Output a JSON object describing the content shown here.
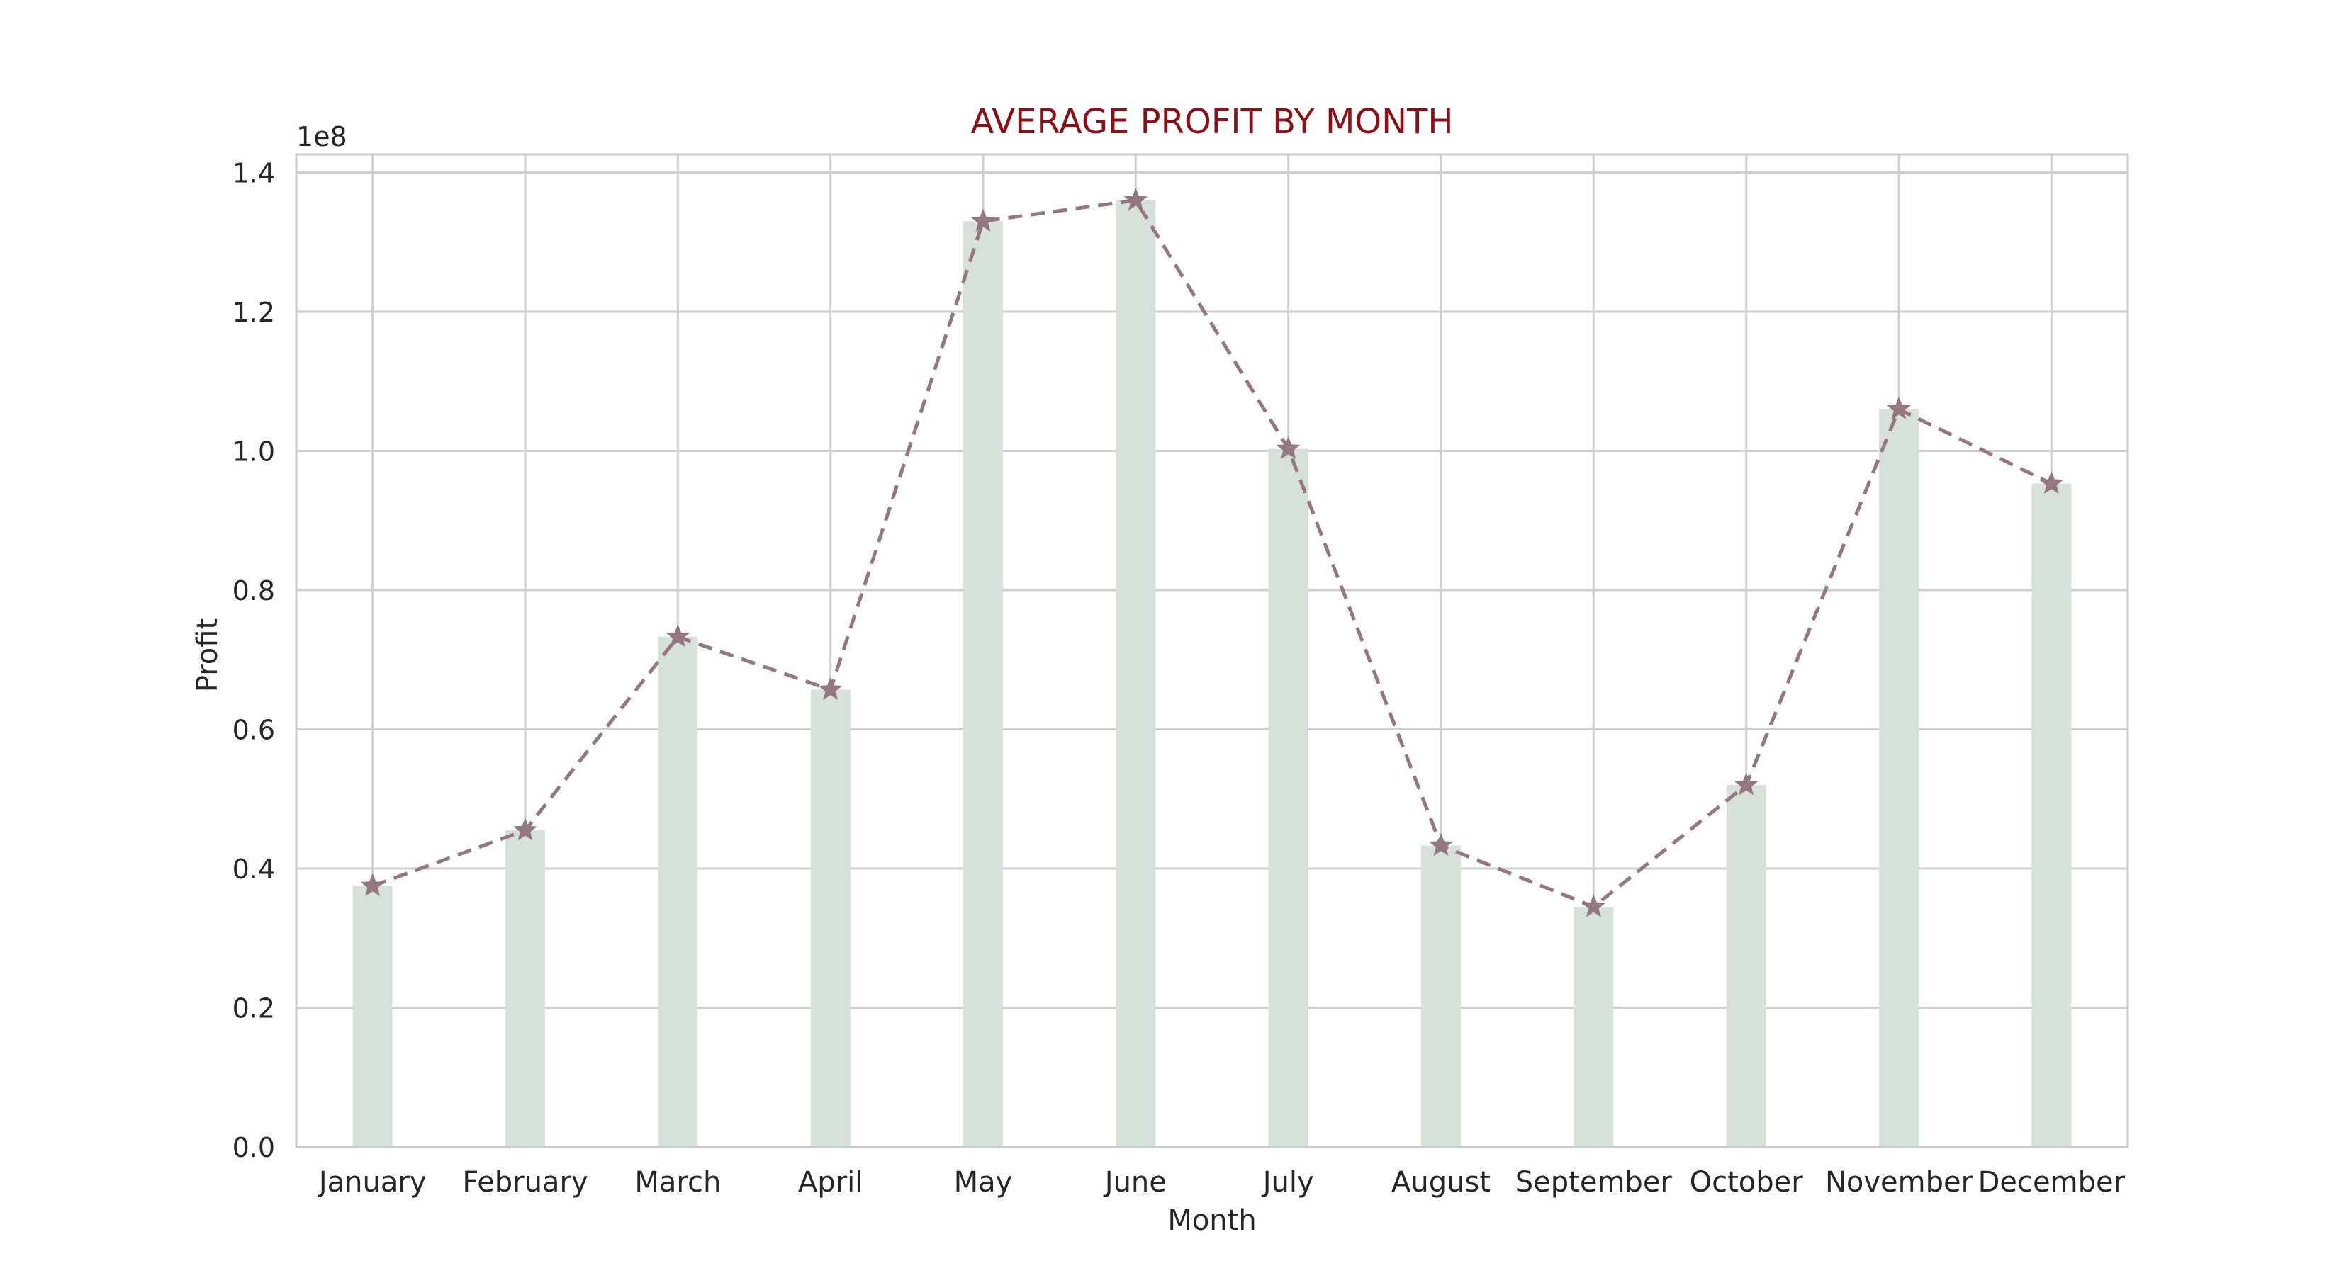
{
  "chart_data": {
    "type": "bar",
    "title": "AVERAGE PROFIT BY MONTH",
    "xlabel": "Month",
    "ylabel": "Profit",
    "y_offset_label": "1e8",
    "categories": [
      "January",
      "February",
      "March",
      "April",
      "May",
      "June",
      "July",
      "August",
      "September",
      "October",
      "November",
      "December"
    ],
    "values": [
      37500000,
      45500000,
      73300000,
      65700000,
      133000000,
      136000000,
      100300000,
      43300000,
      34500000,
      52000000,
      106000000,
      95300000
    ],
    "overlay_line": {
      "style": "dashed",
      "marker": "star",
      "values": [
        37500000,
        45500000,
        73300000,
        65700000,
        133000000,
        136000000,
        100300000,
        43300000,
        34500000,
        52000000,
        106000000,
        95300000
      ]
    },
    "y_ticks": [
      0,
      20000000,
      40000000,
      60000000,
      80000000,
      100000000,
      120000000,
      140000000
    ],
    "y_tick_labels": [
      "0.0",
      "0.2",
      "0.4",
      "0.6",
      "0.8",
      "1.0",
      "1.2",
      "1.4"
    ],
    "ylim": [
      0,
      142600000
    ],
    "grid": true,
    "colors": {
      "bar": "#d7e1dc",
      "line": "#937781",
      "title": "#8b0f14",
      "grid": "#cfcfcf",
      "spine": "#cccccc",
      "text": "#262626"
    }
  }
}
